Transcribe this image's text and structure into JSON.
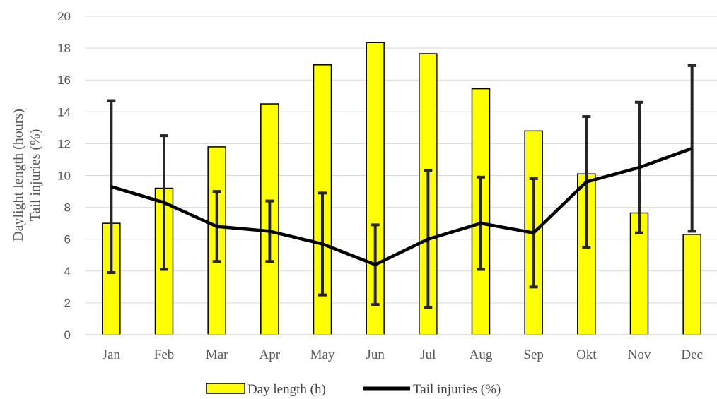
{
  "chart_data": {
    "type": "bar",
    "categories": [
      "Jan",
      "Feb",
      "Mar",
      "Apr",
      "May",
      "Jun",
      "Jul",
      "Aug",
      "Sep",
      "Okt",
      "Nov",
      "Dec"
    ],
    "ylabel_line1": "Daylight length (hours)",
    "ylabel_line2": "Tail injuries (%)",
    "ylim": [
      0,
      20
    ],
    "yticks": [
      0,
      2,
      4,
      6,
      8,
      10,
      12,
      14,
      16,
      18,
      20
    ],
    "ytick_labels": [
      "0",
      "2",
      "4",
      "6",
      "8",
      "10",
      "12",
      "14",
      "16",
      "18",
      "20"
    ],
    "grid": true,
    "legend_position": "bottom",
    "series": [
      {
        "name": "Day length (h)",
        "type": "bar",
        "color": "#ffff00",
        "edge_color": "#000000",
        "values": [
          7.0,
          9.2,
          11.8,
          14.5,
          16.95,
          18.35,
          17.65,
          15.45,
          12.8,
          10.1,
          7.65,
          6.3
        ]
      },
      {
        "name": "Tail injuries (%)",
        "type": "line",
        "color": "#000000",
        "values": [
          9.3,
          8.3,
          6.8,
          6.5,
          5.7,
          4.4,
          6.0,
          7.0,
          6.4,
          9.6,
          10.5,
          11.7
        ],
        "error_low": [
          3.9,
          4.1,
          4.6,
          4.6,
          2.5,
          1.9,
          1.7,
          4.1,
          3.0,
          5.5,
          6.4,
          6.5
        ],
        "error_high": [
          14.7,
          12.5,
          9.0,
          8.4,
          8.9,
          6.9,
          10.3,
          9.9,
          9.8,
          13.7,
          14.6,
          16.9
        ]
      }
    ]
  }
}
